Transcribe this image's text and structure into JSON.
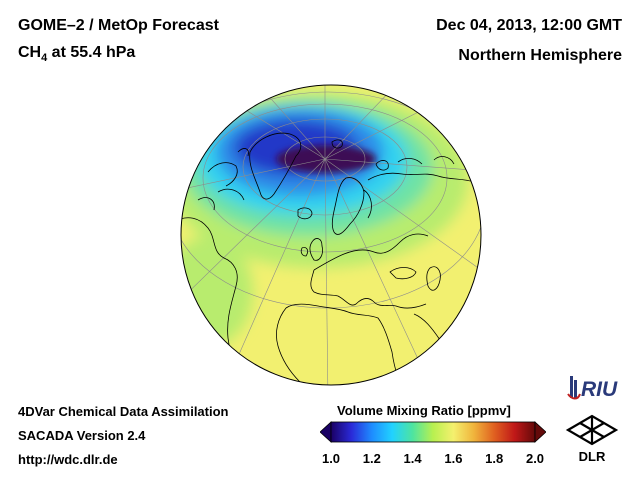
{
  "header": {
    "title": "GOME–2 / MetOp Forecast",
    "species_main": "CH",
    "species_sub": "4",
    "species_rest": " at 55.4 hPa",
    "date": "Dec 04, 2013, 12:00 GMT",
    "region": "Northern Hemisphere"
  },
  "footer": {
    "line1": "4DVar Chemical Data Assimilation",
    "line2": "SACADA Version 2.4",
    "url": "http://wdc.dlr.de"
  },
  "colorbar": {
    "title": "Volume Mixing Ratio [ppmv]",
    "range": [
      1.0,
      2.0
    ],
    "ticks": [
      "1.0",
      "1.2",
      "1.4",
      "1.6",
      "1.8",
      "2.0"
    ],
    "tick_values": [
      1.0,
      1.2,
      1.4,
      1.6,
      1.8,
      2.0
    ],
    "colors": [
      "#1a0064",
      "#2a2ad8",
      "#1e8cff",
      "#21d2ff",
      "#4ee4a0",
      "#b8f050",
      "#f4f06e",
      "#f0b43c",
      "#e06020",
      "#c01818",
      "#640a0a"
    ]
  },
  "map_field": {
    "background_value_ppmv": 1.58,
    "polar_minimum_ppmv": 1.0,
    "colors": {
      "background": "#f2f070",
      "light_green": "#b8ec6e",
      "green": "#6ee2a6",
      "cyan": "#32d2f0",
      "blue": "#2f8ae8",
      "dark_blue": "#2238c8",
      "deep_purple": "#3c0a55",
      "coast": "#000000",
      "grid": "#8c8c8c"
    }
  },
  "logos": {
    "riu": "RIU",
    "dlr": "DLR"
  }
}
